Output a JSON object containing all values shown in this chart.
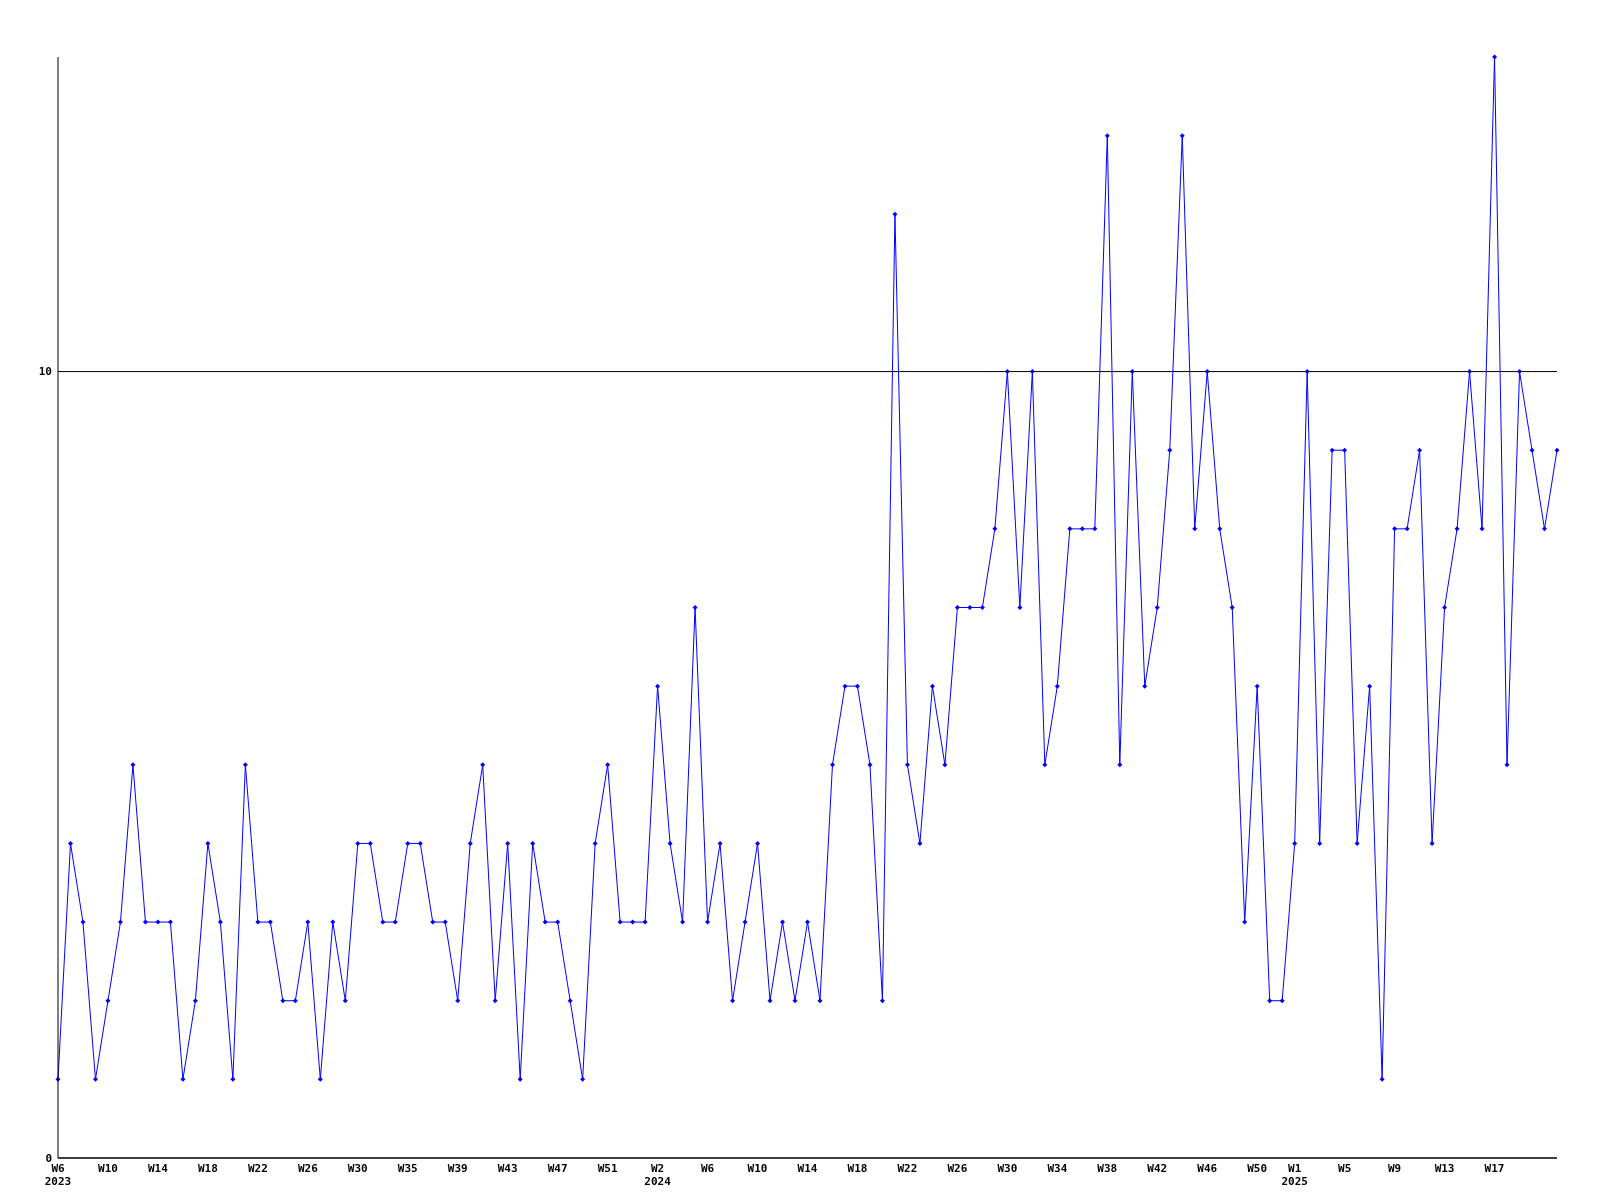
{
  "chart_data": {
    "type": "line",
    "categories": [
      "W6\n2023",
      null,
      null,
      null,
      "W10",
      null,
      null,
      null,
      "W14",
      null,
      null,
      null,
      "W18",
      null,
      null,
      null,
      "W22",
      null,
      null,
      null,
      "W26",
      null,
      null,
      null,
      "W30",
      null,
      null,
      null,
      "W35",
      null,
      null,
      null,
      "W39",
      null,
      null,
      null,
      "W43",
      null,
      null,
      null,
      "W47",
      null,
      null,
      null,
      "W51",
      null,
      null,
      null,
      "W2\n2024",
      null,
      null,
      null,
      "W6",
      null,
      null,
      null,
      "W10",
      null,
      null,
      null,
      "W14",
      null,
      null,
      null,
      "W18",
      null,
      null,
      null,
      "W22",
      null,
      null,
      null,
      "W26",
      null,
      null,
      null,
      "W30",
      null,
      null,
      null,
      "W34",
      null,
      null,
      null,
      "W38",
      null,
      null,
      null,
      "W42",
      null,
      null,
      null,
      "W46",
      null,
      null,
      null,
      "W50",
      null,
      null,
      "W1\n2025",
      null,
      null,
      null,
      "W5",
      null,
      null,
      null,
      "W9",
      null,
      null,
      null,
      "W13",
      null,
      null,
      null,
      "W17",
      null,
      null,
      null,
      null,
      null
    ],
    "series": [
      {
        "color": "#0000ff",
        "values": [
          1,
          4,
          3,
          1,
          2,
          3,
          5,
          3,
          3,
          3,
          1,
          2,
          4,
          3,
          1,
          5,
          3,
          3,
          2,
          2,
          3,
          1,
          3,
          2,
          4,
          4,
          3,
          3,
          4,
          4,
          3,
          3,
          2,
          4,
          5,
          2,
          4,
          1,
          4,
          3,
          3,
          2,
          1,
          4,
          5,
          3,
          3,
          3,
          6,
          4,
          3,
          7,
          3,
          4,
          2,
          3,
          4,
          2,
          3,
          2,
          3,
          2,
          5,
          6,
          6,
          5,
          2,
          12,
          5,
          4,
          6,
          5,
          7,
          7,
          7,
          8,
          10,
          7,
          10,
          5,
          6,
          8,
          8,
          8,
          13,
          5,
          10,
          6,
          7,
          9,
          13,
          8,
          10,
          8,
          7,
          3,
          6,
          2,
          2,
          4,
          10,
          4,
          9,
          9,
          4,
          6,
          1,
          8,
          8,
          9,
          4,
          7,
          8,
          10,
          8,
          14,
          5,
          10,
          9,
          8,
          9
        ]
      }
    ],
    "ylim": [
      0,
      14
    ],
    "yticks": [
      0,
      10
    ],
    "grid": "y",
    "marker": "diamond",
    "line_style": "solid"
  }
}
